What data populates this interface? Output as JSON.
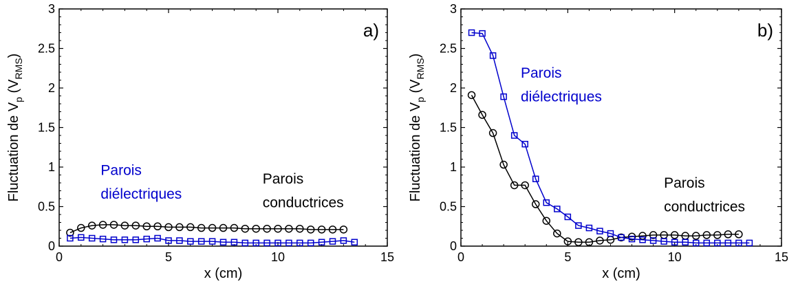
{
  "chart_data": [
    {
      "type": "line",
      "panel_label": "a)",
      "xlabel": "x (cm)",
      "ylabel": {
        "main": "Fluctuation de V",
        "sub": "p",
        "paren_open": " (V",
        "paren_sub": "RMS",
        "paren_close": ")"
      },
      "xlim": [
        0,
        15
      ],
      "ylim": [
        0,
        3
      ],
      "xticks": [
        "0",
        "5",
        "10",
        "15"
      ],
      "yticks": [
        "0",
        "0.5",
        "1",
        "1.5",
        "2",
        "2.5",
        "3"
      ],
      "grid": false,
      "annotations": [
        {
          "text": "Parois",
          "color": "#0000cc",
          "x": 1.9,
          "y": 0.9
        },
        {
          "text": "diélectriques",
          "color": "#0000cc",
          "x": 1.9,
          "y": 0.6
        },
        {
          "text": "Parois",
          "color": "#000000",
          "x": 9.3,
          "y": 0.79
        },
        {
          "text": "conductrices",
          "color": "#000000",
          "x": 9.3,
          "y": 0.49
        }
      ],
      "series": [
        {
          "marker": "circle",
          "color": "#000000",
          "x": [
            0.5,
            1.0,
            1.5,
            2.0,
            2.5,
            3.0,
            3.5,
            4.0,
            4.5,
            5.0,
            5.5,
            6.0,
            6.5,
            7.0,
            7.5,
            8.0,
            8.5,
            9.0,
            9.5,
            10.0,
            10.5,
            11.0,
            11.5,
            12.0,
            12.5,
            13.0
          ],
          "y": [
            0.17,
            0.23,
            0.26,
            0.27,
            0.27,
            0.26,
            0.26,
            0.25,
            0.25,
            0.24,
            0.24,
            0.24,
            0.23,
            0.23,
            0.23,
            0.23,
            0.22,
            0.22,
            0.22,
            0.22,
            0.22,
            0.22,
            0.21,
            0.21,
            0.21,
            0.21
          ]
        },
        {
          "marker": "square",
          "color": "#0000cc",
          "x": [
            0.5,
            1.0,
            1.5,
            2.0,
            2.5,
            3.0,
            3.5,
            4.0,
            4.5,
            5.0,
            5.5,
            6.0,
            6.5,
            7.0,
            7.5,
            8.0,
            8.5,
            9.0,
            9.5,
            10.0,
            10.5,
            11.0,
            11.5,
            12.0,
            12.5,
            13.0,
            13.5
          ],
          "y": [
            0.1,
            0.11,
            0.1,
            0.09,
            0.08,
            0.08,
            0.08,
            0.09,
            0.1,
            0.07,
            0.07,
            0.06,
            0.06,
            0.06,
            0.05,
            0.05,
            0.04,
            0.04,
            0.04,
            0.04,
            0.04,
            0.04,
            0.04,
            0.05,
            0.06,
            0.07,
            0.05
          ]
        }
      ]
    },
    {
      "type": "line",
      "panel_label": "b)",
      "xlabel": "x (cm)",
      "ylabel": {
        "main": "Fluctuation de V",
        "sub": "p",
        "paren_open": " (V",
        "paren_sub": "RMS",
        "paren_close": ")"
      },
      "xlim": [
        0,
        15
      ],
      "ylim": [
        0,
        3
      ],
      "xticks": [
        "0",
        "5",
        "10",
        "15"
      ],
      "yticks": [
        "0",
        "0.5",
        "1",
        "1.5",
        "2",
        "2.5",
        "3"
      ],
      "grid": false,
      "annotations": [
        {
          "text": "Parois",
          "color": "#0000cc",
          "x": 2.8,
          "y": 2.13
        },
        {
          "text": "diélectriques",
          "color": "#0000cc",
          "x": 2.8,
          "y": 1.83
        },
        {
          "text": "Parois",
          "color": "#000000",
          "x": 9.5,
          "y": 0.74
        },
        {
          "text": "conductrices",
          "color": "#000000",
          "x": 9.5,
          "y": 0.44
        }
      ],
      "series": [
        {
          "marker": "circle",
          "color": "#000000",
          "x": [
            0.5,
            1.0,
            1.5,
            2.0,
            2.5,
            3.0,
            3.5,
            4.0,
            4.5,
            5.0,
            5.5,
            6.0,
            6.5,
            7.0,
            7.5,
            8.0,
            8.5,
            9.0,
            9.5,
            10.0,
            10.5,
            11.0,
            11.5,
            12.0,
            12.5,
            13.0
          ],
          "y": [
            1.91,
            1.66,
            1.43,
            1.03,
            0.77,
            0.77,
            0.53,
            0.32,
            0.16,
            0.06,
            0.05,
            0.05,
            0.07,
            0.08,
            0.11,
            0.12,
            0.13,
            0.14,
            0.14,
            0.14,
            0.13,
            0.13,
            0.14,
            0.14,
            0.15,
            0.15
          ]
        },
        {
          "marker": "square",
          "color": "#0000cc",
          "x": [
            0.5,
            1.0,
            1.5,
            2.0,
            2.5,
            3.0,
            3.5,
            4.0,
            4.5,
            5.0,
            5.5,
            6.0,
            6.5,
            7.0,
            7.5,
            8.0,
            8.5,
            9.0,
            9.5,
            10.0,
            10.5,
            11.0,
            11.5,
            12.0,
            12.5,
            13.0,
            13.5
          ],
          "y": [
            2.7,
            2.69,
            2.41,
            1.89,
            1.4,
            1.29,
            0.85,
            0.55,
            0.47,
            0.37,
            0.26,
            0.23,
            0.19,
            0.16,
            0.11,
            0.09,
            0.08,
            0.07,
            0.06,
            0.05,
            0.05,
            0.04,
            0.04,
            0.04,
            0.04,
            0.04,
            0.04
          ]
        }
      ]
    }
  ]
}
